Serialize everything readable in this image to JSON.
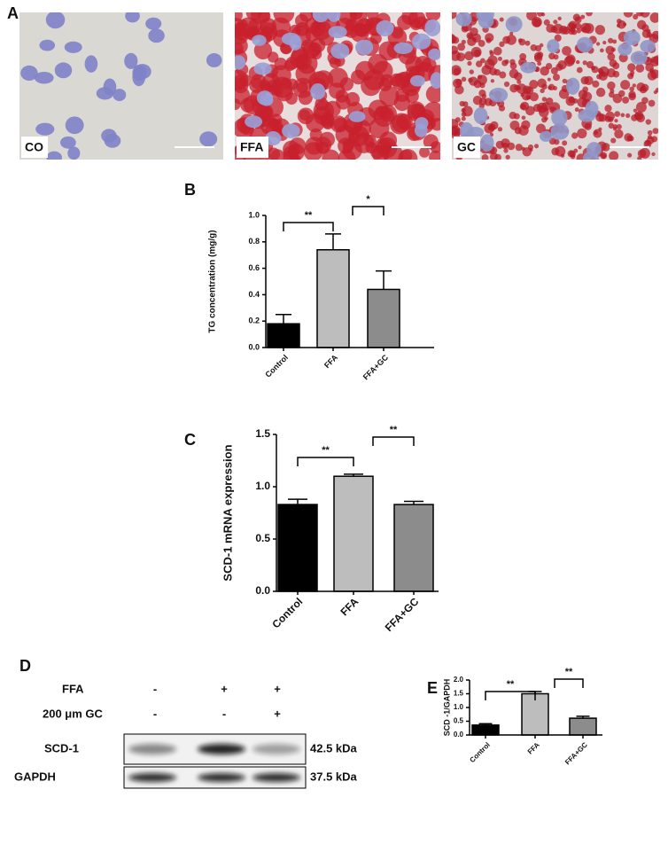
{
  "panel_a": {
    "panel": "A",
    "images": [
      "CO",
      "FFA",
      "GC"
    ]
  },
  "chart_data": [
    {
      "type": "bar",
      "panel": "B",
      "y_label": "TG concentration (mg/g)",
      "categories": [
        "Control",
        "FFA",
        "FFA+GC"
      ],
      "values": [
        0.18,
        0.74,
        0.44
      ],
      "errors": [
        0.07,
        0.12,
        0.14
      ],
      "colors": [
        "#000000",
        "#bdbdbd",
        "#8c8c8c"
      ],
      "annotations": [
        "**",
        "*"
      ],
      "ylim": [
        0,
        1.0
      ],
      "yticks": [
        {
          "value": 0,
          "label": "0.0"
        },
        0.2,
        0.4,
        0.6,
        0.8,
        {
          "value": 1.0,
          "label": "1.0"
        }
      ]
    },
    {
      "type": "bar",
      "panel": "C",
      "y_label": "SCD-1 mRNA expression",
      "categories": [
        "Control",
        "FFA",
        "FFA+GC"
      ],
      "values": [
        0.83,
        1.1,
        0.83
      ],
      "errors": [
        0.05,
        0.02,
        0.03
      ],
      "colors": [
        "#000000",
        "#bdbdbd",
        "#8c8c8c"
      ],
      "annotations": [
        "**",
        "**"
      ],
      "ylim": [
        0,
        1.5
      ],
      "yticks": [
        {
          "value": 0,
          "label": "0.0"
        },
        0.5,
        {
          "value": 1.0,
          "label": "1.0"
        },
        1.5
      ]
    },
    {
      "type": "bar",
      "panel": "E",
      "y_label": "SCD -1/GAPDH",
      "categories": [
        "Control",
        "FFA",
        "FFA+GC"
      ],
      "values": [
        0.36,
        1.5,
        0.61
      ],
      "errors": [
        0.05,
        0.08,
        0.07
      ],
      "colors": [
        "#000000",
        "#bdbdbd",
        "#8c8c8c"
      ],
      "annotations": [
        "**",
        "**"
      ],
      "ylim": [
        0,
        2.0
      ],
      "yticks": [
        {
          "value": 0,
          "label": "0.0"
        },
        0.5,
        {
          "value": 1.0,
          "label": "1.0"
        },
        1.5,
        {
          "value": 2.0,
          "label": "2.0"
        }
      ]
    }
  ],
  "panel_d": {
    "panel": "D",
    "rows": [
      {
        "label": "FFA",
        "signs": [
          "-",
          "+",
          "+"
        ]
      },
      {
        "label": "200 μm GC",
        "signs": [
          "-",
          "-",
          "+"
        ]
      }
    ],
    "blots": [
      {
        "label": "SCD-1",
        "size": "42.5 kDa"
      },
      {
        "label": "GAPDH",
        "size": "37.5 kDa"
      }
    ]
  }
}
